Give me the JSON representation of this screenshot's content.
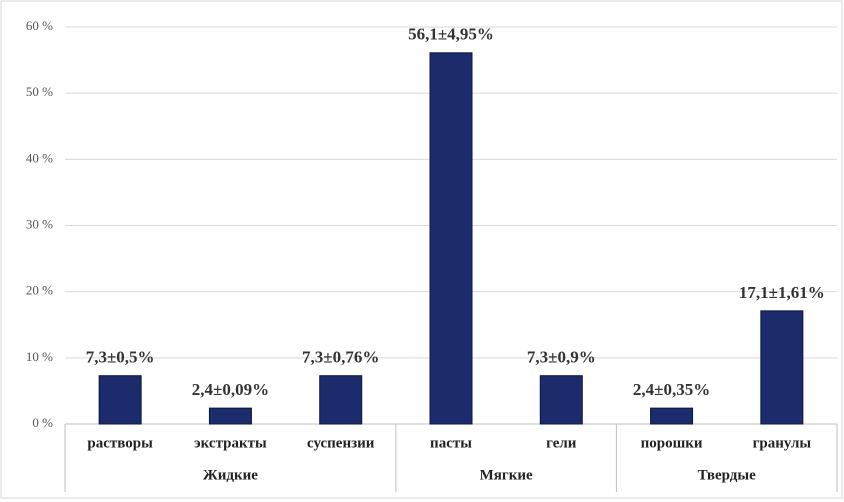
{
  "chart_data": {
    "type": "bar",
    "groups": [
      {
        "name": "Жидкие",
        "categories": [
          "растворы",
          "экстракты",
          "суспензии"
        ]
      },
      {
        "name": "Мягкие",
        "categories": [
          "пасты",
          "гели"
        ]
      },
      {
        "name": "Твердые",
        "categories": [
          "порошки",
          "гранулы"
        ]
      }
    ],
    "values": [
      7.3,
      2.4,
      7.3,
      56.1,
      7.3,
      2.4,
      17.1
    ],
    "value_labels": [
      "7,3±0,5%",
      "2,4±0,09%",
      "7,3±0,76%",
      "56,1±4,95%",
      "7,3±0,9%",
      "2,4±0,35%",
      "17,1±1,61%"
    ],
    "color": "#1b2b6b",
    "ylim": [
      0,
      60
    ],
    "yticks": [
      {
        "value": 0,
        "label": "0 %"
      },
      {
        "value": 10,
        "label": "10 %"
      },
      {
        "value": 20,
        "label": "20 %"
      },
      {
        "value": 30,
        "label": "30 %"
      },
      {
        "value": 40,
        "label": "40 %"
      },
      {
        "value": 50,
        "label": "50 %"
      },
      {
        "value": 60,
        "label": "60 %"
      }
    ],
    "grid": true
  }
}
